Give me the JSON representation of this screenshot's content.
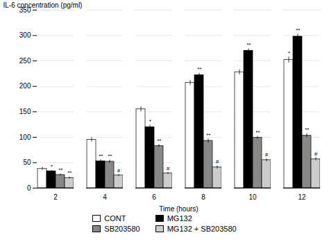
{
  "chart_data": {
    "type": "bar",
    "categories": [
      "2",
      "4",
      "6",
      "8",
      "10",
      "12"
    ],
    "series": [
      {
        "name": "CONT",
        "color": "white",
        "values": [
          38,
          95,
          155,
          207,
          228,
          252
        ],
        "errors": [
          3,
          4,
          5,
          5,
          5,
          6
        ],
        "annotations": [
          null,
          null,
          null,
          null,
          null,
          "*"
        ]
      },
      {
        "name": "MG132",
        "color": "black",
        "values": [
          33,
          53,
          120,
          222,
          270,
          298
        ],
        "errors": [
          2,
          3,
          4,
          4,
          4,
          5
        ],
        "annotations": [
          "*",
          "**",
          "*",
          "**",
          "**",
          "**"
        ]
      },
      {
        "name": "SB203580",
        "color": "#888888",
        "values": [
          26,
          52,
          83,
          93,
          99,
          103
        ],
        "errors": [
          2,
          3,
          3,
          4,
          3,
          4
        ],
        "annotations": [
          "**",
          "**",
          "**",
          "**",
          "**",
          "**"
        ]
      },
      {
        "name": "MG132 + SB203580",
        "color": "#cccccc",
        "values": [
          20,
          25,
          29,
          41,
          55,
          57
        ],
        "errors": [
          2,
          2,
          2,
          3,
          3,
          3
        ],
        "annotations": [
          "**",
          "#",
          "#",
          "#",
          "#",
          "#"
        ]
      }
    ],
    "xlabel": "Time (hours)",
    "ylabel": "IL-6 concentration (pg/ml)",
    "ylim": [
      0,
      350
    ],
    "yticks": [
      0,
      50,
      100,
      150,
      200,
      250,
      300,
      350
    ],
    "grid": true,
    "legend": "bottom"
  }
}
